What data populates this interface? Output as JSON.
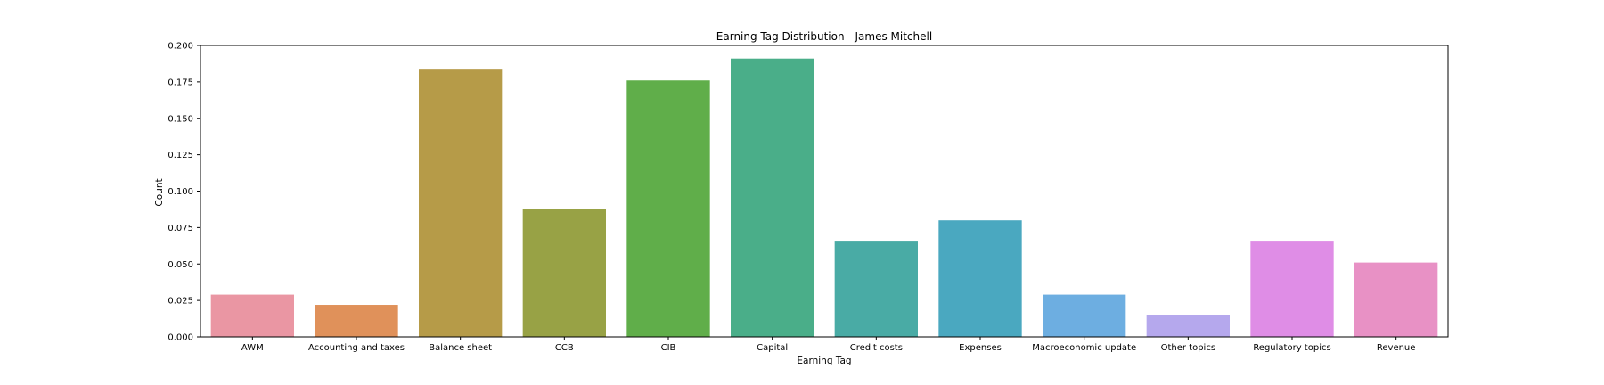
{
  "chart_data": {
    "type": "bar",
    "title": "Earning Tag Distribution - James Mitchell",
    "xlabel": "Earning Tag",
    "ylabel": "Count",
    "ylim": [
      0,
      0.2
    ],
    "yticks": [
      "0.000",
      "0.025",
      "0.050",
      "0.075",
      "0.100",
      "0.125",
      "0.150",
      "0.175",
      "0.200"
    ],
    "grid": false,
    "legend": "none",
    "categories": [
      "AWM",
      "Accounting and taxes",
      "Balance sheet",
      "CCB",
      "CIB",
      "Capital",
      "Credit costs",
      "Expenses",
      "Macroeconomic update",
      "Other topics",
      "Regulatory topics",
      "Revenue"
    ],
    "values": [
      0.029,
      0.022,
      0.184,
      0.088,
      0.176,
      0.191,
      0.066,
      0.08,
      0.029,
      0.015,
      0.066,
      0.051
    ],
    "colors": [
      "#ea96a3",
      "#e0915a",
      "#b69b48",
      "#98a245",
      "#60ae4a",
      "#4aae89",
      "#49aba5",
      "#4aa8c0",
      "#6daee1",
      "#b5a8ed",
      "#df8de6",
      "#e891c5"
    ]
  }
}
